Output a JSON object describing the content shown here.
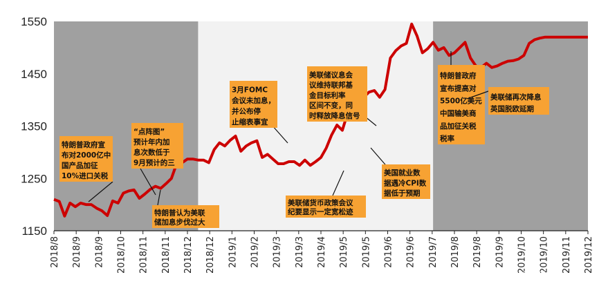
{
  "watermark": "@华夏基金",
  "chart_data": {
    "type": "line",
    "title": "",
    "xlabel": "",
    "ylabel": "",
    "ylim": [
      1150,
      1550
    ],
    "y_ticks": [
      1150,
      1250,
      1350,
      1450,
      1550
    ],
    "x_ticks": [
      "2018/8",
      "2018/9",
      "2018/9",
      "2018/10",
      "2018/11",
      "2018/11",
      "2018/12",
      "2018/12",
      "2019/1",
      "2019/2",
      "2019/3",
      "2019/3",
      "2019/4",
      "2019/5",
      "2019/5",
      "2019/6",
      "2019/6",
      "2019/7",
      "2019/8",
      "2019/8",
      "2019/9",
      "2019/10",
      "2019/10",
      "2019/11",
      "2019/12"
    ],
    "grid": false,
    "line_color": "#cc0000",
    "shaded_periods": [
      {
        "from": 0.0,
        "to": 27.0,
        "color": "#a0a0a0"
      },
      {
        "from": 27.0,
        "to": 71.0,
        "color": "#f2f2f2"
      },
      {
        "from": 71.0,
        "to": 100.0,
        "color": "#a0a0a0"
      }
    ],
    "series": [
      {
        "x": [
          0,
          1,
          2,
          3,
          4,
          5,
          6,
          7,
          8,
          9,
          10,
          11,
          12,
          13,
          14,
          15,
          16,
          17,
          18,
          19,
          20,
          21,
          22,
          23,
          24,
          25,
          26,
          27,
          28,
          29,
          30,
          31,
          32,
          33,
          34,
          35,
          36,
          37,
          38,
          39,
          40,
          41,
          42,
          43,
          44,
          45,
          46,
          47,
          48,
          49,
          50,
          51,
          52,
          53,
          54,
          55,
          56,
          57,
          58,
          59,
          60,
          61,
          62,
          63,
          64,
          65,
          66,
          67,
          68,
          69,
          70,
          71,
          72,
          73,
          74,
          75,
          76,
          77,
          78,
          79,
          80,
          81,
          82,
          83,
          84,
          85,
          86,
          87,
          88,
          89,
          90,
          91,
          92,
          93,
          94,
          95,
          96,
          97,
          98,
          99,
          100
        ],
        "values": [
          1210,
          1206,
          1178,
          1203,
          1196,
          1203,
          1200,
          1200,
          1193,
          1188,
          1179,
          1207,
          1203,
          1222,
          1226,
          1228,
          1212,
          1220,
          1229,
          1235,
          1231,
          1240,
          1250,
          1279,
          1280,
          1287,
          1287,
          1285,
          1285,
          1280,
          1305,
          1318,
          1312,
          1323,
          1331,
          1302,
          1312,
          1318,
          1322,
          1290,
          1296,
          1287,
          1278,
          1278,
          1282,
          1282,
          1275,
          1285,
          1275,
          1282,
          1290,
          1308,
          1333,
          1352,
          1342,
          1375,
          1390,
          1416,
          1405,
          1415,
          1418,
          1405,
          1420,
          1480,
          1494,
          1503,
          1508,
          1545,
          1522,
          1490,
          1498,
          1510,
          1495,
          1500,
          1485,
          1490,
          1500,
          1510,
          1480,
          1465,
          1462,
          1470,
          1462,
          1465,
          1470,
          1474,
          1475,
          1478,
          1485,
          1508,
          1515,
          1518,
          1520,
          1520,
          1520,
          1520,
          1520,
          1520,
          1520,
          1520,
          1520
        ]
      }
    ],
    "annotations": [
      {
        "lines": [
          "特朗普政府宣",
          "布对2000亿中",
          "国产品加征",
          "10%进口关税"
        ],
        "x": 12,
        "y": 1195
      },
      {
        "lines": [
          "特朗普认为美联",
          "储加息步伐过大"
        ],
        "x": 22,
        "y": 1214
      },
      {
        "lines": [
          "“点阵图”",
          "预计年内加",
          "息次数低于",
          "9月预计的三"
        ],
        "x": 35,
        "y": 1317
      },
      {
        "lines": [
          "3月FOMC",
          "会议未加息，",
          "并公布停",
          "止缩表事宜"
        ],
        "x": 49,
        "y": 1335
      },
      {
        "lines": [
          "美联储货币政策会议",
          "纪要显示一定宽松迹"
        ],
        "x": 63,
        "y": 1260
      },
      {
        "lines": [
          "美联储议息会",
          "议维持联邦基",
          "金目标利率",
          "区间不变，同",
          "时释放降息信号"
        ],
        "x": 69,
        "y": 1333
      },
      {
        "lines": [
          "美国就业数",
          "据遇冷CPI数",
          "据低于预期"
        ],
        "x": 74,
        "y": 1283
      },
      {
        "lines": [
          "特朗普政府",
          "宣布提高对",
          "5500亿美元",
          "中国输美商",
          "品加征关税",
          "税率"
        ],
        "x": 84,
        "y": 1462
      },
      {
        "lines": [
          "美联储再次降息",
          "英国脱欧延期"
        ],
        "x": 90,
        "y": 1486
      }
    ]
  }
}
